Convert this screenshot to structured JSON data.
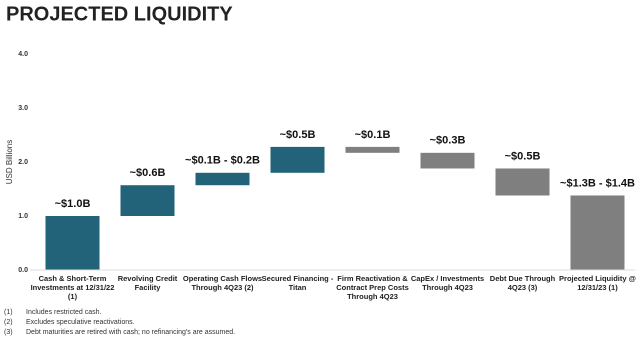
{
  "title": "PROJECTED LIQUIDITY",
  "chart_data": {
    "type": "waterfall",
    "y_label": "USD Billions",
    "categories": [
      "Cash & Short-Term Investments at 12/31/22 (1)",
      "Revolving Credit Facility",
      "Operating Cash Flows Through 4Q23 (2)",
      "Secured Financing - Titan",
      "Firm Reactivation & Contract Prep Costs Through 4Q23",
      "CapEx / Investments Through 4Q23",
      "Debt Due Through 4Q23 (3)",
      "Projected Liquidity @ 12/31/23 (1)"
    ],
    "measure": [
      "absolute",
      "relative",
      "relative",
      "relative",
      "relative",
      "relative",
      "relative",
      "absolute"
    ],
    "values": [
      1.0,
      0.57,
      0.23,
      0.48,
      -0.11,
      -0.29,
      -0.5,
      1.38
    ],
    "value_labels": [
      "~$1.0B",
      "~$0.6B",
      "~$0.1B - $0.2B",
      "~$0.5B",
      "~$0.1B",
      "~$0.3B",
      "~$0.5B",
      "~$1.3B - $1.4B"
    ],
    "colors": [
      "#22637a",
      "#22637a",
      "#22637a",
      "#22637a",
      "#7f7f7f",
      "#7f7f7f",
      "#7f7f7f",
      "#7f7f7f"
    ],
    "ylim": [
      0,
      4
    ],
    "yticks": [
      {
        "value": 0,
        "label": "0.0"
      },
      {
        "value": 1,
        "label": "1.0"
      },
      {
        "value": 2,
        "label": "2.0"
      },
      {
        "value": 3,
        "label": "3.0"
      },
      {
        "value": 4,
        "label": "4.0"
      }
    ]
  },
  "footnotes": [
    [
      "(1)",
      "Includes restricted cash."
    ],
    [
      "(2)",
      "Excludes speculative reactivations."
    ],
    [
      "(3)",
      "Debt maturities are retired with cash; no refinancing's are assumed."
    ]
  ]
}
